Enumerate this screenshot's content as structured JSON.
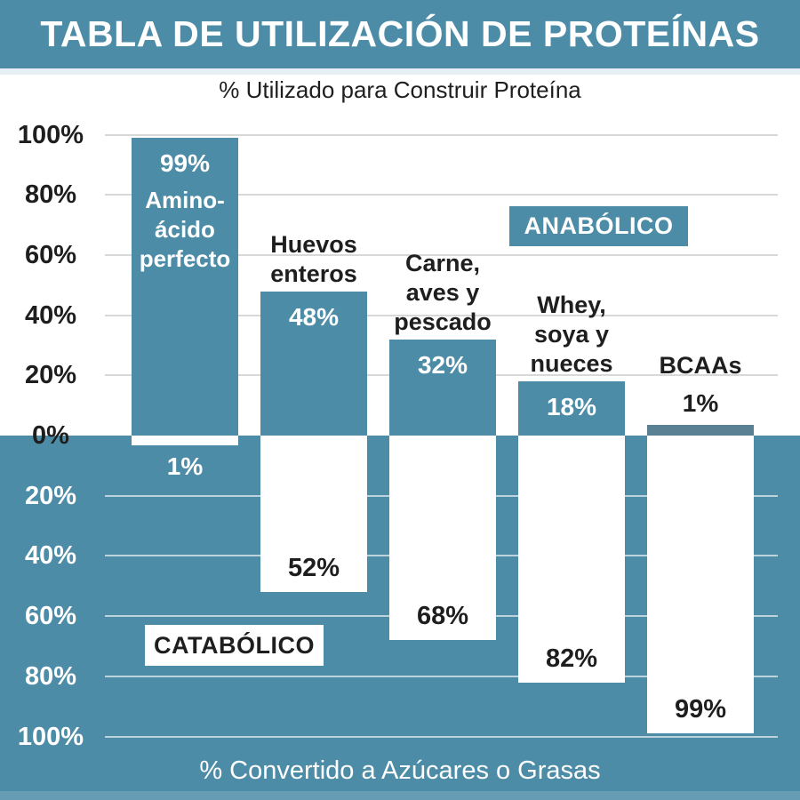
{
  "page": {
    "title": "TABLA DE UTILIZACIÓN DE PROTEÍNAS",
    "top_axis_title": "% Utilizado para Construir Proteína",
    "bottom_axis_title": "% Convertido a Azúcares o Grasas"
  },
  "colors": {
    "teal": "#4d8ca7",
    "bcaa_strip_teal": "#5a8094",
    "text_dark": "#1e1e1e",
    "white": "#ffffff",
    "grid_top": "#d8d8d8",
    "grid_bottom": "rgba(255,255,255,0.62)"
  },
  "chart_data": {
    "type": "bar",
    "subtype": "diverging-vertical",
    "title": "TABLA DE UTILIZACIÓN DE PROTEÍNAS",
    "top_axis_label": "% Utilizado para Construir Proteína",
    "bottom_axis_label": "% Convertido a Azúcares o Grasas",
    "zones": {
      "anabolic": "ANABÓLICO",
      "catabolic": "CATABÓLICO"
    },
    "categories": [
      "Amino-ácido perfecto",
      "Huevos enteros",
      "Carne, aves y pescado",
      "Whey, soya y nueces",
      "BCAAs"
    ],
    "series": [
      {
        "name": "Utilizado para construir proteína (anabólico)",
        "values": [
          99,
          48,
          32,
          18,
          1
        ]
      },
      {
        "name": "Convertido a azúcares o grasas (catabólico)",
        "values": [
          1,
          52,
          68,
          82,
          99
        ]
      }
    ],
    "y_ticks_up": [
      "100%",
      "80%",
      "60%",
      "40%",
      "20%",
      "0%"
    ],
    "y_ticks_down": [
      "20%",
      "40%",
      "60%",
      "80%",
      "100%"
    ],
    "y_axis": {
      "up_max": 100,
      "down_max": 100,
      "grid": true
    },
    "items": [
      {
        "label_lines": "Amino-\nácido\nperfecto",
        "up": 99,
        "down": 1,
        "up_label": "99%",
        "down_label": "1%",
        "label_pos": "inside",
        "up_label_pos": "inside",
        "down_label_pos": "below"
      },
      {
        "label_lines": "Huevos\nenteros",
        "up": 48,
        "down": 52,
        "up_label": "48%",
        "down_label": "52%",
        "label_pos": "above",
        "up_label_pos": "inside",
        "down_label_pos": "inside"
      },
      {
        "label_lines": "Carne,\naves y\npescado",
        "up": 32,
        "down": 68,
        "up_label": "32%",
        "down_label": "68%",
        "label_pos": "above",
        "up_label_pos": "inside",
        "down_label_pos": "inside"
      },
      {
        "label_lines": "Whey,\nsoya y\nnueces",
        "up": 18,
        "down": 82,
        "up_label": "18%",
        "down_label": "82%",
        "label_pos": "above",
        "up_label_pos": "inside",
        "down_label_pos": "inside"
      },
      {
        "label_lines": "BCAAs",
        "up": 1,
        "down": 99,
        "up_label": "1%",
        "down_label": "99%",
        "label_pos": "above",
        "up_label_pos": "above",
        "down_label_pos": "inside",
        "bar_color": "#5a8094"
      }
    ]
  }
}
